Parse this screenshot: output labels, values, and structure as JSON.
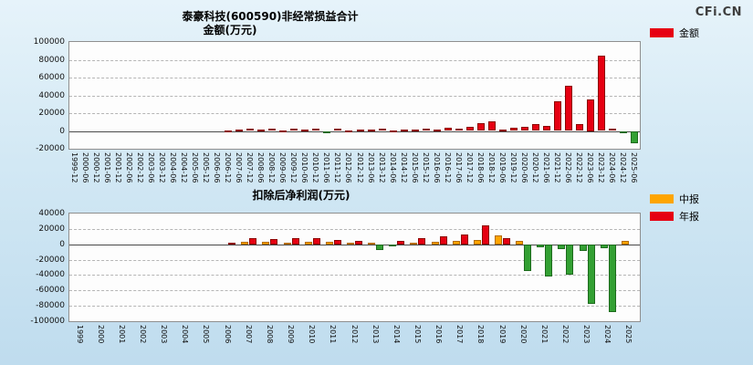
{
  "watermark": {
    "brand": "CFi.CN"
  },
  "chart_data": [
    {
      "type": "bar",
      "title": "泰豪科技(600590)非经常损益合计",
      "subtitle": "金额(万元)",
      "legend": [
        {
          "label": "金额",
          "color": "#e60012"
        }
      ],
      "legend_position": "top-right",
      "grid": true,
      "ylim": [
        -20000,
        100000
      ],
      "ytick_step": 20000,
      "negative_color": "#33a033",
      "negative_border": "#1d6b1d",
      "categories": [
        "1999-12",
        "2000-06",
        "2000-12",
        "2001-06",
        "2001-12",
        "2002-06",
        "2002-12",
        "2003-06",
        "2003-12",
        "2004-06",
        "2004-12",
        "2005-06",
        "2005-12",
        "2006-06",
        "2006-12",
        "2007-06",
        "2007-12",
        "2008-06",
        "2008-12",
        "2009-06",
        "2009-12",
        "2010-06",
        "2010-12",
        "2011-06",
        "2011-12",
        "2012-06",
        "2012-12",
        "2013-06",
        "2013-12",
        "2014-06",
        "2014-12",
        "2015-06",
        "2015-12",
        "2016-06",
        "2016-12",
        "2017-06",
        "2017-12",
        "2018-06",
        "2018-12",
        "2019-06",
        "2019-12",
        "2020-06",
        "2020-12",
        "2021-06",
        "2021-12",
        "2022-06",
        "2022-12",
        "2023-06",
        "2023-12",
        "2024-06",
        "2024-12",
        "2025-06"
      ],
      "series": [
        {
          "name": "金额",
          "color": "#e60012",
          "border": "#8b0000",
          "values": [
            null,
            null,
            null,
            null,
            null,
            null,
            null,
            null,
            null,
            null,
            null,
            null,
            null,
            null,
            400,
            1800,
            2600,
            1200,
            2200,
            900,
            2400,
            1300,
            2800,
            -900,
            2100,
            800,
            1900,
            1100,
            2300,
            700,
            1800,
            1200,
            2600,
            1500,
            3200,
            2400,
            4800,
            8800,
            10500,
            1800,
            3500,
            4500,
            8000,
            5200,
            33000,
            50500,
            8000,
            35000,
            84500,
            3000,
            -2500,
            -13500
          ]
        }
      ]
    },
    {
      "type": "bar",
      "title": "扣除后净利润(万元)",
      "legend": [
        {
          "label": "中报",
          "color": "#ffa500"
        },
        {
          "label": "年报",
          "color": "#e60012"
        }
      ],
      "legend_position": "top-right",
      "grid": true,
      "ylim": [
        -100000,
        40000
      ],
      "ytick_step": 20000,
      "negative_color": "#33a033",
      "negative_border": "#1d6b1d",
      "categories": [
        "1999",
        "2000",
        "2001",
        "2002",
        "2003",
        "2004",
        "2005",
        "2006",
        "2007",
        "2008",
        "2009",
        "2010",
        "2011",
        "2012",
        "2013",
        "2014",
        "2015",
        "2016",
        "2017",
        "2018",
        "2019",
        "2020",
        "2021",
        "2022",
        "2023",
        "2024",
        "2025"
      ],
      "series": [
        {
          "name": "中报",
          "color": "#ffa500",
          "border": "#b36b00",
          "values": [
            null,
            null,
            null,
            null,
            null,
            null,
            null,
            null,
            3000,
            3500,
            2500,
            3200,
            2800,
            2000,
            1500,
            -1500,
            2200,
            3500,
            4500,
            6000,
            11000,
            4000,
            -4500,
            -6000,
            -8500,
            -5000,
            4500
          ]
        },
        {
          "name": "年报",
          "color": "#e60012",
          "border": "#8b0000",
          "values": [
            null,
            null,
            null,
            null,
            null,
            null,
            null,
            1500,
            8500,
            7000,
            8000,
            7500,
            6000,
            5000,
            -7000,
            4500,
            8000,
            10500,
            12500,
            25000,
            8500,
            -35000,
            -42000,
            -40000,
            -78000,
            -88000,
            null
          ]
        }
      ]
    }
  ]
}
